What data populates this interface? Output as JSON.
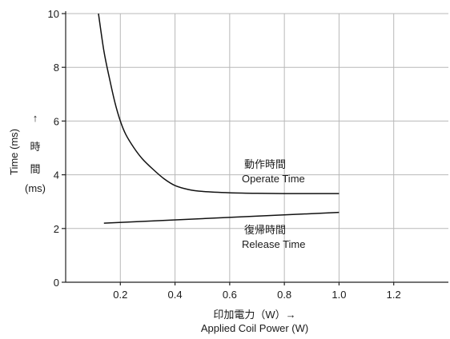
{
  "chart_data": {
    "type": "line",
    "xlabel_ja": "印加電力（W）→",
    "xlabel_en": "Applied Coil Power (W)",
    "ylabel_en": "Time (ms)",
    "ylabel_arrow": "↑",
    "ylabel_ja_1": "時",
    "ylabel_ja_2": "間",
    "ylabel_unit": "(ms)",
    "xlim": [
      0,
      1.4
    ],
    "ylim": [
      0,
      10
    ],
    "x_ticks": [
      0.2,
      0.4,
      0.6,
      0.8,
      1.0,
      1.2
    ],
    "x_tick_labels": [
      "0.2",
      "0.4",
      "0.6",
      "0.8",
      "1.0",
      "1.2"
    ],
    "y_ticks": [
      0,
      2,
      4,
      6,
      8,
      10
    ],
    "y_tick_labels": [
      "0",
      "2",
      "4",
      "6",
      "8",
      "10"
    ],
    "grid": true,
    "series": [
      {
        "label_ja": "動作時間",
        "label_en": "Operate Time",
        "x": [
          0.12,
          0.14,
          0.16,
          0.18,
          0.2,
          0.22,
          0.25,
          0.28,
          0.32,
          0.36,
          0.4,
          0.45,
          0.5,
          0.6,
          0.7,
          0.8,
          0.9,
          1.0
        ],
        "y": [
          10.0,
          8.6,
          7.6,
          6.7,
          6.0,
          5.5,
          5.0,
          4.6,
          4.2,
          3.85,
          3.6,
          3.45,
          3.38,
          3.33,
          3.31,
          3.3,
          3.3,
          3.3
        ]
      },
      {
        "label_ja": "復帰時間",
        "label_en": "Release Time",
        "x": [
          0.14,
          1.0
        ],
        "y": [
          2.2,
          2.6
        ]
      }
    ]
  }
}
